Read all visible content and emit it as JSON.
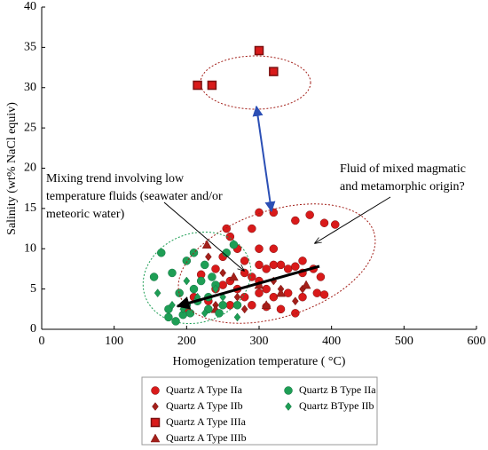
{
  "chart_data": {
    "type": "scatter",
    "xlabel": "Homogenization temperature ( °C)",
    "ylabel": "Salinity (wt% NaCl equiv)",
    "xlim": [
      0,
      600
    ],
    "xticks": [
      0,
      100,
      200,
      300,
      400,
      500,
      600
    ],
    "ylim": [
      0,
      40
    ],
    "yticks": [
      0,
      5,
      10,
      15,
      20,
      25,
      30,
      35,
      40
    ],
    "annotations": [
      [
        "Mixing trend involving low",
        "temperature fluids (seawater and/or",
        "meteoric water)"
      ],
      [
        "Fluid of mixed magmatic",
        "and metamorphic origin?"
      ]
    ],
    "series": [
      {
        "name": "Quartz A Type IIa",
        "color": "#d91a1a",
        "marker": "circle",
        "x": [
          255,
          260,
          290,
          300,
          320,
          350,
          370,
          390,
          405,
          270,
          300,
          320,
          250,
          280,
          300,
          310,
          320,
          330,
          340,
          350,
          360,
          375,
          385,
          280,
          290,
          300,
          260,
          250,
          240,
          270,
          300,
          320,
          340,
          360,
          380,
          390,
          230,
          260,
          290,
          310,
          330,
          350,
          200,
          210,
          220,
          240,
          360,
          310,
          280
        ],
        "values": [
          12.5,
          11.5,
          12.5,
          14.5,
          14.5,
          13.5,
          14.2,
          13.2,
          13,
          10,
          10,
          10,
          9,
          8.5,
          8,
          7.5,
          8,
          8,
          7.5,
          7.8,
          7,
          7.5,
          6.5,
          7,
          6.5,
          6,
          6,
          5.5,
          5,
          5,
          4.5,
          4,
          4.5,
          4,
          4.5,
          4.3,
          3.5,
          3,
          3,
          2.8,
          2.5,
          2,
          2.5,
          4,
          6.8,
          7.5,
          8.5,
          5,
          4
        ]
      },
      {
        "name": "Quartz A Type IIb",
        "color": "#a3201a",
        "marker": "diamond",
        "x": [
          230,
          250,
          270,
          300,
          330,
          350,
          280,
          320,
          240,
          360
        ],
        "values": [
          9,
          7,
          4,
          5.5,
          5,
          3.5,
          2.5,
          6,
          3,
          5
        ]
      },
      {
        "name": "Quartz A Type IIIa",
        "color": "#d91a1a",
        "marker": "square",
        "x": [
          215,
          235,
          300,
          320
        ],
        "values": [
          30.3,
          30.3,
          34.6,
          32
        ]
      },
      {
        "name": "Quartz A Type IIIb",
        "color": "#a3201a",
        "marker": "triangle",
        "x": [
          228,
          265,
          300,
          330,
          365,
          240,
          310
        ],
        "values": [
          10.5,
          6.5,
          5.5,
          4.5,
          5.5,
          2.5,
          3
        ]
      },
      {
        "name": "Quartz B Type IIa",
        "color": "#1e9e55",
        "marker": "circle",
        "x": [
          155,
          165,
          175,
          180,
          190,
          195,
          200,
          205,
          210,
          215,
          220,
          225,
          230,
          240,
          250,
          255,
          265,
          245,
          230,
          185,
          175,
          210,
          235,
          200,
          270
        ],
        "values": [
          6.5,
          9.5,
          2.5,
          7,
          4.5,
          1.8,
          8.5,
          2,
          5,
          3.5,
          6,
          8,
          4,
          5.5,
          3,
          9.5,
          10.5,
          2,
          2.5,
          1,
          1.5,
          9.5,
          6.5,
          3,
          3
        ]
      },
      {
        "name": "Quartz BType IIb",
        "color": "#1e9e55",
        "marker": "diamond",
        "x": [
          160,
          195,
          215,
          225,
          240,
          200,
          250,
          270,
          180
        ],
        "values": [
          4.5,
          2.5,
          4,
          2,
          5,
          6,
          4,
          1.5,
          3
        ]
      }
    ]
  }
}
